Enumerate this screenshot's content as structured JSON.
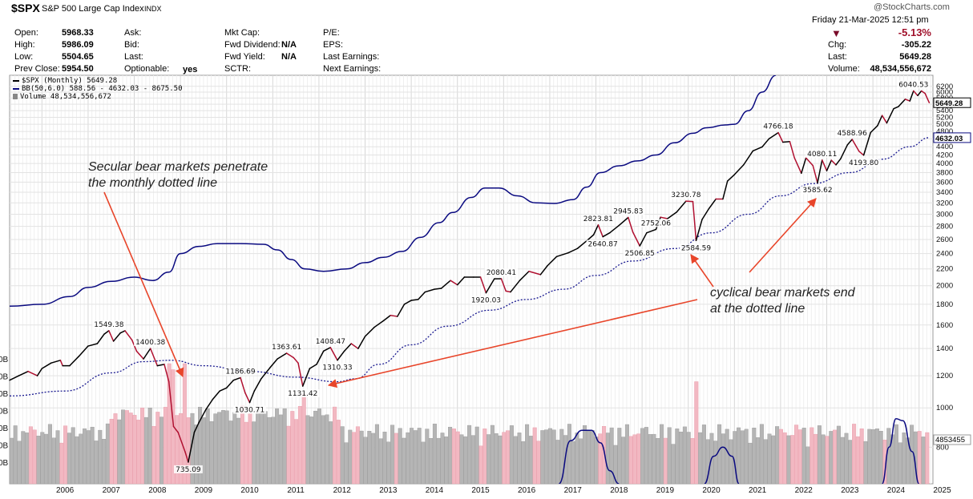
{
  "header": {
    "symbol": "$SPX",
    "name": "S&P 500 Large Cap Index",
    "exchange": "INDX",
    "credit": "@StockCharts.com",
    "date": "Friday  21-Mar-2025  12:51 pm",
    "open_label": "Open:",
    "open": "5968.33",
    "high_label": "High:",
    "high": "5986.09",
    "low_label": "Low:",
    "low": "5504.65",
    "prev_label": "Prev Close:",
    "prev": "5954.50",
    "ask_label": "Ask:",
    "bid_label": "Bid:",
    "last_label_mid": "Last:",
    "optionable_label": "Optionable:",
    "optionable": "yes",
    "mktcap_label": "Mkt Cap:",
    "fwddiv_label": "Fwd Dividend:",
    "fwddiv": "N/A",
    "fwdyield_label": "Fwd Yield:",
    "fwdyield": "N/A",
    "sctr_label": "SCTR:",
    "pe_label": "P/E:",
    "eps_label": "EPS:",
    "lastearn_label": "Last Earnings:",
    "nextearn_label": "Next Earnings:",
    "pct": "-5.13%",
    "chg_label": "Chg:",
    "chg": "-305.22",
    "last_label": "Last:",
    "last": "5649.28",
    "volume_label": "Volume:",
    "volume": "48,534,556,672"
  },
  "legend": {
    "price": "$SPX (Monthly) 5649.28",
    "bb": "BB(50,6.0) 588.56 - 4632.03 - 8675.50",
    "volume": "Volume 48,534,556,672"
  },
  "annotations": {
    "secular_1": "Secular bear markets penetrate",
    "secular_2": "the monthly dotted line",
    "cyclical_1": "cyclical bear markets end",
    "cyclical_2": "at the dotted line"
  },
  "colors": {
    "up": "#000000",
    "down": "#b01030",
    "bb_band": "#0a0a80",
    "bb_mid": "#1a1a90",
    "vol_up": "#b5b5b5",
    "vol_down": "#f2b8c2",
    "arrow": "#e8452a"
  },
  "chart_data": {
    "type": "line",
    "title": "$SPX S&P 500 Large Cap Index (Monthly), log scale",
    "x_range": [
      2005.3,
      2025.3
    ],
    "ylim": [
      650,
      6600
    ],
    "y_scale": "log",
    "y_ticks": [
      800,
      1000,
      1200,
      1400,
      1600,
      1800,
      2000,
      2200,
      2400,
      2600,
      2800,
      3000,
      3200,
      3400,
      3600,
      3800,
      4000,
      4200,
      4400,
      4600,
      4800,
      5000,
      5200,
      5400,
      5600,
      5800,
      6000,
      6200
    ],
    "x_ticks": [
      "2006",
      "2007",
      "2008",
      "2009",
      "2010",
      "2011",
      "2012",
      "2013",
      "2014",
      "2015",
      "2016",
      "2017",
      "2018",
      "2019",
      "2020",
      "2021",
      "2022",
      "2023",
      "2024",
      "2025"
    ],
    "volume_axis_labels": [
      "0B",
      "0B",
      "0B",
      "0B",
      "0B",
      "0B",
      "0B"
    ],
    "volume_last": "4853455",
    "current_price_label": "5649.28",
    "current_mid_label": "4632.03",
    "price_series": [
      [
        2005.3,
        1170
      ],
      [
        2005.5,
        1200
      ],
      [
        2005.7,
        1230
      ],
      [
        2005.9,
        1200
      ],
      [
        2006.0,
        1250
      ],
      [
        2006.2,
        1290
      ],
      [
        2006.4,
        1310
      ],
      [
        2006.45,
        1270
      ],
      [
        2006.6,
        1270
      ],
      [
        2006.8,
        1340
      ],
      [
        2007.0,
        1420
      ],
      [
        2007.2,
        1440
      ],
      [
        2007.35,
        1520
      ],
      [
        2007.45,
        1549.38
      ],
      [
        2007.55,
        1460
      ],
      [
        2007.7,
        1530
      ],
      [
        2007.8,
        1549
      ],
      [
        2007.95,
        1470
      ],
      [
        2008.05,
        1380
      ],
      [
        2008.2,
        1320
      ],
      [
        2008.35,
        1400.38
      ],
      [
        2008.5,
        1270
      ],
      [
        2008.65,
        1280
      ],
      [
        2008.75,
        1160
      ],
      [
        2008.85,
        900
      ],
      [
        2008.95,
        870
      ],
      [
        2009.1,
        780
      ],
      [
        2009.17,
        735.09
      ],
      [
        2009.3,
        870
      ],
      [
        2009.4,
        920
      ],
      [
        2009.55,
        990
      ],
      [
        2009.7,
        1050
      ],
      [
        2009.85,
        1100
      ],
      [
        2010.0,
        1120
      ],
      [
        2010.15,
        1170
      ],
      [
        2010.3,
        1186.69
      ],
      [
        2010.4,
        1090
      ],
      [
        2010.5,
        1030.71
      ],
      [
        2010.6,
        1100
      ],
      [
        2010.75,
        1180
      ],
      [
        2010.95,
        1260
      ],
      [
        2011.1,
        1320
      ],
      [
        2011.3,
        1363.61
      ],
      [
        2011.45,
        1330
      ],
      [
        2011.55,
        1290
      ],
      [
        2011.65,
        1131.42
      ],
      [
        2011.8,
        1250
      ],
      [
        2011.95,
        1280
      ],
      [
        2012.1,
        1380
      ],
      [
        2012.25,
        1408.47
      ],
      [
        2012.4,
        1310.33
      ],
      [
        2012.55,
        1380
      ],
      [
        2012.7,
        1440
      ],
      [
        2012.85,
        1400
      ],
      [
        2013.0,
        1500
      ],
      [
        2013.2,
        1580
      ],
      [
        2013.4,
        1640
      ],
      [
        2013.55,
        1690
      ],
      [
        2013.7,
        1680
      ],
      [
        2013.85,
        1800
      ],
      [
        2014.0,
        1840
      ],
      [
        2014.15,
        1850
      ],
      [
        2014.3,
        1930
      ],
      [
        2014.5,
        1960
      ],
      [
        2014.65,
        1970
      ],
      [
        2014.85,
        2060
      ],
      [
        2015.0,
        2010
      ],
      [
        2015.15,
        2100
      ],
      [
        2015.35,
        2100
      ],
      [
        2015.5,
        2100
      ],
      [
        2015.62,
        1920.03
      ],
      [
        2015.8,
        2080
      ],
      [
        2015.95,
        2080.41
      ],
      [
        2016.05,
        1940
      ],
      [
        2016.15,
        1930
      ],
      [
        2016.35,
        2060
      ],
      [
        2016.55,
        2170
      ],
      [
        2016.8,
        2130
      ],
      [
        2016.95,
        2240
      ],
      [
        2017.15,
        2360
      ],
      [
        2017.4,
        2410
      ],
      [
        2017.6,
        2470
      ],
      [
        2017.8,
        2580
      ],
      [
        2017.95,
        2670
      ],
      [
        2018.05,
        2823.81
      ],
      [
        2018.15,
        2640.87
      ],
      [
        2018.3,
        2700
      ],
      [
        2018.5,
        2816
      ],
      [
        2018.7,
        2945.83
      ],
      [
        2018.8,
        2711
      ],
      [
        2018.95,
        2506.85
      ],
      [
        2019.1,
        2700
      ],
      [
        2019.3,
        2752.06
      ],
      [
        2019.4,
        2950
      ],
      [
        2019.55,
        2926
      ],
      [
        2019.75,
        3037
      ],
      [
        2019.95,
        3230.78
      ],
      [
        2020.1,
        3225
      ],
      [
        2020.17,
        2584.59
      ],
      [
        2020.3,
        2912
      ],
      [
        2020.45,
        3100
      ],
      [
        2020.6,
        3271
      ],
      [
        2020.75,
        3270
      ],
      [
        2020.85,
        3621
      ],
      [
        2021.0,
        3756
      ],
      [
        2021.2,
        3972
      ],
      [
        2021.4,
        4297
      ],
      [
        2021.6,
        4395
      ],
      [
        2021.75,
        4605
      ],
      [
        2021.95,
        4766.18
      ],
      [
        2022.05,
        4515
      ],
      [
        2022.2,
        4530
      ],
      [
        2022.3,
        4131
      ],
      [
        2022.45,
        3785
      ],
      [
        2022.55,
        4130
      ],
      [
        2022.7,
        3955
      ],
      [
        2022.8,
        3585.62
      ],
      [
        2022.9,
        4080.11
      ],
      [
        2023.0,
        3839
      ],
      [
        2023.1,
        4076
      ],
      [
        2023.2,
        3970
      ],
      [
        2023.3,
        4109
      ],
      [
        2023.45,
        4450
      ],
      [
        2023.55,
        4588.96
      ],
      [
        2023.7,
        4288
      ],
      [
        2023.8,
        4193.8
      ],
      [
        2023.95,
        4769
      ],
      [
        2024.1,
        4958
      ],
      [
        2024.2,
        5254
      ],
      [
        2024.3,
        5035
      ],
      [
        2024.45,
        5460
      ],
      [
        2024.55,
        5522
      ],
      [
        2024.7,
        5762
      ],
      [
        2024.8,
        5705
      ],
      [
        2024.88,
        6040.53
      ],
      [
        2024.97,
        5882
      ],
      [
        2025.05,
        6040
      ],
      [
        2025.13,
        5954
      ],
      [
        2025.22,
        5649.28
      ]
    ],
    "bb_mid_series": [
      [
        2005.3,
        1070
      ],
      [
        2006.5,
        1100
      ],
      [
        2007.5,
        1220
      ],
      [
        2008.2,
        1300
      ],
      [
        2008.8,
        1310
      ],
      [
        2009.5,
        1270
      ],
      [
        2010.5,
        1230
      ],
      [
        2011.5,
        1190
      ],
      [
        2012.4,
        1160
      ],
      [
        2012.8,
        1180
      ],
      [
        2013.3,
        1280
      ],
      [
        2014.0,
        1430
      ],
      [
        2014.8,
        1590
      ],
      [
        2015.7,
        1740
      ],
      [
        2016.5,
        1850
      ],
      [
        2017.3,
        1960
      ],
      [
        2018.0,
        2120
      ],
      [
        2018.8,
        2300
      ],
      [
        2019.7,
        2470
      ],
      [
        2020.5,
        2700
      ],
      [
        2021.3,
        3000
      ],
      [
        2022.0,
        3330
      ],
      [
        2022.7,
        3570
      ],
      [
        2023.5,
        3800
      ],
      [
        2024.2,
        4100
      ],
      [
        2024.8,
        4400
      ],
      [
        2025.22,
        4632.03
      ]
    ],
    "bb_upper_series": [
      [
        2005.3,
        1780
      ],
      [
        2006.0,
        1800
      ],
      [
        2006.6,
        1880
      ],
      [
        2007.0,
        1980
      ],
      [
        2007.5,
        2050
      ],
      [
        2008.0,
        2100
      ],
      [
        2008.4,
        2060
      ],
      [
        2008.75,
        2160
      ],
      [
        2009.0,
        2400
      ],
      [
        2009.4,
        2500
      ],
      [
        2009.8,
        2540
      ],
      [
        2010.3,
        2540
      ],
      [
        2010.8,
        2530
      ],
      [
        2011.1,
        2450
      ],
      [
        2011.4,
        2320
      ],
      [
        2011.7,
        2200
      ],
      [
        2012.1,
        2170
      ],
      [
        2012.6,
        2200
      ],
      [
        2013.0,
        2280
      ],
      [
        2013.4,
        2350
      ],
      [
        2013.8,
        2430
      ],
      [
        2014.2,
        2630
      ],
      [
        2014.6,
        2860
      ],
      [
        2014.9,
        3030
      ],
      [
        2015.3,
        3300
      ],
      [
        2015.6,
        3480
      ],
      [
        2015.9,
        3480
      ],
      [
        2016.3,
        3330
      ],
      [
        2016.7,
        3200
      ],
      [
        2017.1,
        3190
      ],
      [
        2017.5,
        3260
      ],
      [
        2017.8,
        3500
      ],
      [
        2018.1,
        3800
      ],
      [
        2018.5,
        3950
      ],
      [
        2018.9,
        4060
      ],
      [
        2019.3,
        4200
      ],
      [
        2019.7,
        4500
      ],
      [
        2020.1,
        4750
      ],
      [
        2020.4,
        4900
      ],
      [
        2020.8,
        4980
      ],
      [
        2021.0,
        5000
      ],
      [
        2021.3,
        5400
      ],
      [
        2021.6,
        6000
      ],
      [
        2021.9,
        6600
      ]
    ],
    "bb_lower_low_2017": [
      [
        2017.2,
        650
      ],
      [
        2017.45,
        830
      ],
      [
        2017.7,
        880
      ],
      [
        2017.9,
        880
      ],
      [
        2018.1,
        820
      ],
      [
        2018.3,
        700
      ],
      [
        2018.5,
        650
      ]
    ],
    "bb_lower_low_2020": [
      [
        2020.35,
        650
      ],
      [
        2020.55,
        760
      ],
      [
        2020.75,
        800
      ],
      [
        2020.95,
        760
      ],
      [
        2021.1,
        650
      ]
    ],
    "bb_lower_low_2024": [
      [
        2024.2,
        650
      ],
      [
        2024.35,
        800
      ],
      [
        2024.5,
        940
      ],
      [
        2024.65,
        930
      ],
      [
        2024.85,
        780
      ],
      [
        2025.0,
        650
      ]
    ],
    "volume_spikes": [
      [
        2008.75,
        1.0
      ],
      [
        2008.85,
        0.95
      ],
      [
        2009.1,
        1.0
      ],
      [
        2011.65,
        0.75
      ],
      [
        2020.17,
        0.85
      ],
      [
        2022.45,
        0.45
      ]
    ],
    "price_labels": [
      {
        "text": "1549.38",
        "x": 2007.45,
        "y": 1549.38
      },
      {
        "text": "1400.38",
        "x": 2008.35,
        "y": 1400.38
      },
      {
        "text": "735.09",
        "x": 2009.17,
        "y": 735.09
      },
      {
        "text": "1186.69",
        "x": 2010.3,
        "y": 1186.69
      },
      {
        "text": "1030.71",
        "x": 2010.5,
        "y": 1030.71
      },
      {
        "text": "1363.61",
        "x": 2011.3,
        "y": 1363.61
      },
      {
        "text": "1131.42",
        "x": 2011.65,
        "y": 1131.42
      },
      {
        "text": "1408.47",
        "x": 2012.25,
        "y": 1408.47
      },
      {
        "text": "1310.33",
        "x": 2012.4,
        "y": 1310.33
      },
      {
        "text": "2080.41",
        "x": 2015.95,
        "y": 2080.41
      },
      {
        "text": "1920.03",
        "x": 2015.62,
        "y": 1920.03
      },
      {
        "text": "2823.81",
        "x": 2018.05,
        "y": 2823.81
      },
      {
        "text": "2640.87",
        "x": 2018.15,
        "y": 2640.87
      },
      {
        "text": "2945.83",
        "x": 2018.7,
        "y": 2945.83
      },
      {
        "text": "2752.06",
        "x": 2019.3,
        "y": 2752.06
      },
      {
        "text": "2506.85",
        "x": 2018.95,
        "y": 2506.85
      },
      {
        "text": "3230.78",
        "x": 2019.95,
        "y": 3230.78
      },
      {
        "text": "2584.59",
        "x": 2020.17,
        "y": 2584.59
      },
      {
        "text": "4766.18",
        "x": 2021.95,
        "y": 4766.18
      },
      {
        "text": "4080.11",
        "x": 2022.9,
        "y": 4080.11
      },
      {
        "text": "3585.62",
        "x": 2022.8,
        "y": 3585.62
      },
      {
        "text": "4588.96",
        "x": 2023.55,
        "y": 4588.96
      },
      {
        "text": "4193.80",
        "x": 2023.8,
        "y": 4193.8
      },
      {
        "text": "6040.53",
        "x": 2024.88,
        "y": 6040.53
      }
    ]
  }
}
